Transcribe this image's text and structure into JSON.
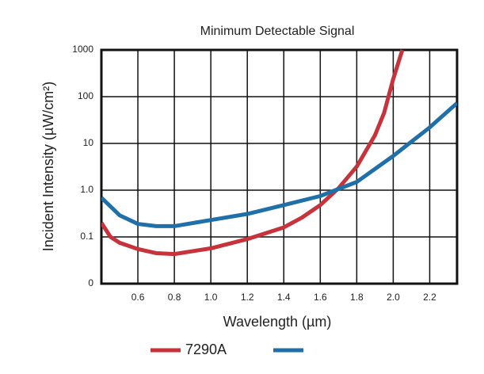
{
  "chart_data": {
    "type": "line",
    "title": "Minimum Detectable Signal",
    "x_label": "Wavelength (µm)",
    "y_label": "Incident Intensity (µW/cm²)",
    "log_y": true,
    "grid": true,
    "xlim": [
      0.4,
      2.35
    ],
    "xticks": [
      0.6,
      0.8,
      {
        "value": 1.0,
        "label": "1.0"
      },
      1.2,
      1.4,
      1.6,
      1.8,
      {
        "value": 2.0,
        "label": "2.0"
      },
      2.2
    ],
    "ylim": [
      0.01,
      1000
    ],
    "yticks": [
      {
        "value": 0.01,
        "label": "0"
      },
      0.1,
      {
        "value": 1,
        "label": "1.0"
      },
      10,
      100,
      1000
    ],
    "series": [
      {
        "name": "7290A",
        "color": "#c8323a",
        "x": [
          0.4,
          0.45,
          0.5,
          0.6,
          0.7,
          0.8,
          1.0,
          1.2,
          1.4,
          1.5,
          1.6,
          1.7,
          1.8,
          1.9,
          1.95,
          2.0,
          2.05
        ],
        "values": [
          0.2,
          0.1,
          0.075,
          0.055,
          0.045,
          0.043,
          0.057,
          0.09,
          0.16,
          0.26,
          0.48,
          1.1,
          3.2,
          15,
          45,
          240,
          1000
        ]
      },
      {
        "color": "#1f6fa8",
        "x": [
          0.4,
          0.5,
          0.6,
          0.7,
          0.8,
          1.0,
          1.2,
          1.4,
          1.6,
          1.8,
          2.0,
          2.2,
          2.35
        ],
        "values": [
          0.69,
          0.29,
          0.19,
          0.17,
          0.17,
          0.23,
          0.31,
          0.48,
          0.75,
          1.5,
          5.4,
          22,
          73
        ]
      }
    ]
  }
}
